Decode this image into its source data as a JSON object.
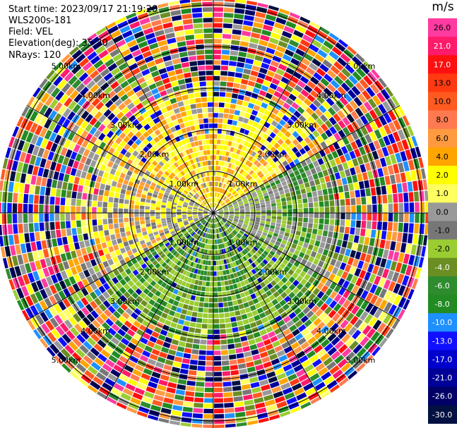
{
  "header": {
    "start_time": "Start time: 2023/09/17 21:19:20",
    "instrument": "WLS200s-181",
    "field": "Field: VEL",
    "elevation": "Elevation(deg): 35.30",
    "nrays": "NRays: 120"
  },
  "colorbar": {
    "unit": "m/s",
    "ticks": [
      "26.0",
      "21.0",
      "17.0",
      "13.0",
      "10.0",
      "8.0",
      "6.0",
      "4.0",
      "2.0",
      "1.0",
      "0.0",
      "-1.0",
      "-2.0",
      "-4.0",
      "-6.0",
      "-8.0",
      "-10.0",
      "-13.0",
      "-17.0",
      "-21.0",
      "-26.0",
      "-30.0"
    ],
    "colors": [
      "#ff3aa0",
      "#ff1a6a",
      "#ff1010",
      "#ff3a10",
      "#ff5a20",
      "#ff7a50",
      "#ff9a40",
      "#ffa500",
      "#ffff00",
      "#ffff60",
      "#999999",
      "#777777",
      "#9acd32",
      "#6b8e23",
      "#2e8b2e",
      "#228b22",
      "#1e90ff",
      "#1010ff",
      "#0000cd",
      "#000099",
      "#000066",
      "#001040"
    ]
  },
  "chart_data": {
    "type": "heatmap",
    "projection": "PPI polar sweep",
    "field": "VEL",
    "units": "m/s",
    "range_rings_km": [
      1.0,
      2.0,
      3.0,
      4.0,
      5.0
    ],
    "range_ring_labels": [
      "1.00km",
      "2.00km",
      "3.00km",
      "4.00km",
      "5.00km"
    ],
    "nrays": 120,
    "color_range": [
      -30.0,
      26.0
    ],
    "description_of_pattern": {
      "north_sector_near_range": "positive 2 to 6 m/s (yellow/orange)",
      "south_sector_near_range": "negative -2 to -8 m/s (green)",
      "east_west_near_range": "around 0 m/s (gray)",
      "far_range": "noise, all colors"
    }
  }
}
